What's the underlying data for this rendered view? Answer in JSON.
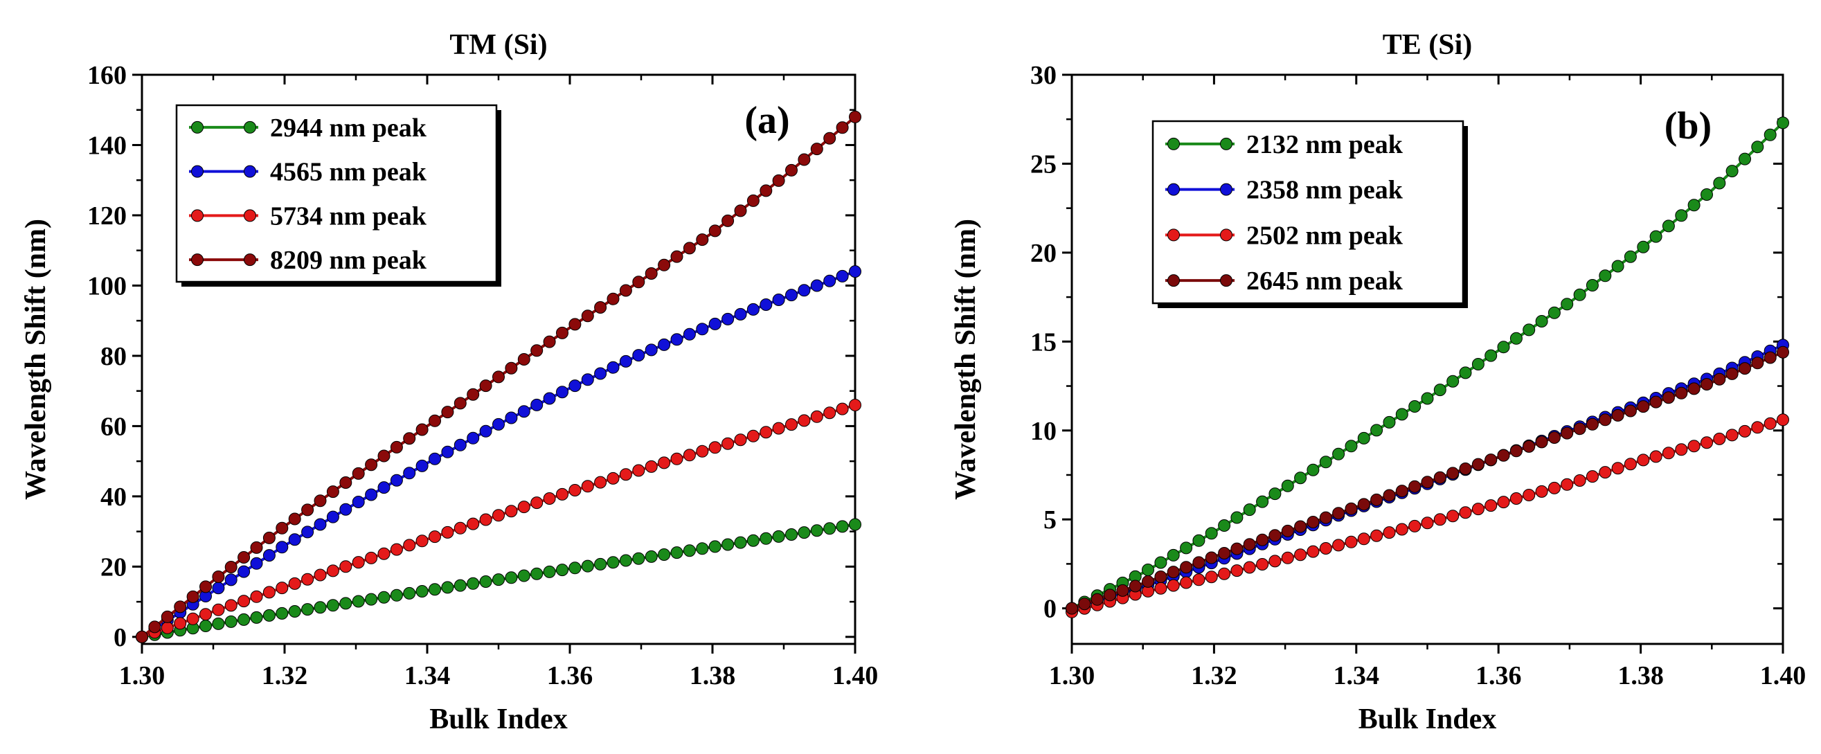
{
  "chart_data": [
    {
      "type": "line",
      "title": "TM (Si)",
      "panel_label": "(a)",
      "xlabel": "Bulk Index",
      "ylabel": "Wavelength Shift (nm)",
      "xlim": [
        1.3,
        1.4
      ],
      "ylim": [
        -2,
        160
      ],
      "xticks": [
        "1.30",
        "1.32",
        "1.34",
        "1.36",
        "1.38",
        "1.40"
      ],
      "yticks": [
        "0",
        "20",
        "40",
        "60",
        "80",
        "100",
        "120",
        "140",
        "160"
      ],
      "legend_position": "top-left",
      "x": [
        1.3,
        1.31,
        1.32,
        1.33,
        1.34,
        1.35,
        1.36,
        1.37,
        1.38,
        1.39,
        1.4
      ],
      "series": [
        {
          "name": "2944 nm peak",
          "color": "#1a8a1a",
          "values": [
            0,
            3.5,
            6.8,
            10,
            13.2,
            16.3,
            19.4,
            22.4,
            25.6,
            28.8,
            32
          ]
        },
        {
          "name": "4565 nm peak",
          "color": "#1010d8",
          "values": [
            0,
            13,
            26,
            38,
            49.5,
            60.5,
            70.8,
            80.5,
            88.8,
            96.5,
            104
          ]
        },
        {
          "name": "5734 nm peak",
          "color": "#e41a1a",
          "values": [
            0,
            7.2,
            14.2,
            21,
            27.8,
            34.6,
            41.3,
            47.6,
            53.7,
            59.8,
            66
          ]
        },
        {
          "name": "8209 nm peak",
          "color": "#8b0a0a",
          "values": [
            0,
            16,
            31.5,
            46,
            60,
            74,
            88,
            101.5,
            115,
            131,
            148
          ]
        }
      ]
    },
    {
      "type": "line",
      "title": "TE (Si)",
      "panel_label": "(b)",
      "xlabel": "Bulk Index",
      "ylabel": "Wavelength Shift (nm)",
      "xlim": [
        1.3,
        1.4
      ],
      "ylim": [
        -2,
        30
      ],
      "xticks": [
        "1.30",
        "1.32",
        "1.34",
        "1.36",
        "1.38",
        "1.40"
      ],
      "yticks": [
        "0",
        "5",
        "10",
        "15",
        "20",
        "25",
        "30"
      ],
      "legend_position": "top-left",
      "x": [
        1.3,
        1.31,
        1.32,
        1.33,
        1.34,
        1.35,
        1.36,
        1.37,
        1.38,
        1.39,
        1.4
      ],
      "series": [
        {
          "name": "2132 nm peak",
          "color": "#1a8a1a",
          "values": [
            0,
            2,
            4.3,
            6.8,
            9.3,
            11.8,
            14.5,
            17.2,
            20.2,
            23.5,
            27.3
          ]
        },
        {
          "name": "2358 nm peak",
          "color": "#1010d8",
          "values": [
            0,
            1.2,
            2.6,
            4.1,
            5.6,
            7,
            8.5,
            10,
            11.5,
            13,
            14.8
          ]
        },
        {
          "name": "2502 nm peak",
          "color": "#e41a1a",
          "values": [
            -0.2,
            0.9,
            1.8,
            2.8,
            3.8,
            4.8,
            5.9,
            7,
            8.3,
            9.4,
            10.6
          ]
        },
        {
          "name": "2645 nm peak",
          "color": "#7a0a0a",
          "values": [
            0,
            1.4,
            2.9,
            4.3,
            5.7,
            7.1,
            8.5,
            9.9,
            11.3,
            12.7,
            14.4
          ]
        }
      ]
    }
  ]
}
